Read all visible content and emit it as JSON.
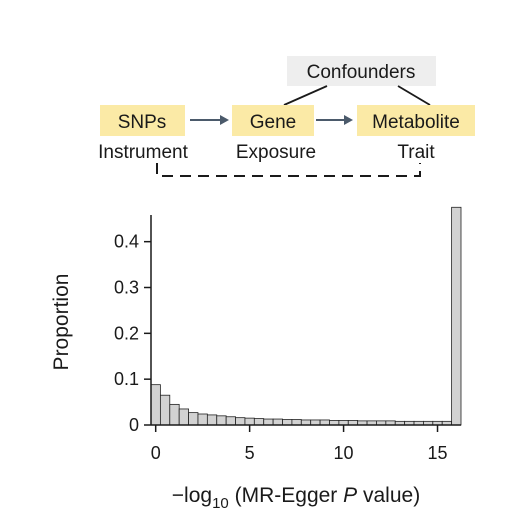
{
  "diagram": {
    "nodes": {
      "snps": {
        "label": "SNPs",
        "role": "Instrument"
      },
      "gene": {
        "label": "Gene",
        "role": "Exposure"
      },
      "metabolite": {
        "label": "Metabolite",
        "role": "Trait"
      },
      "confounders": {
        "label": "Confounders"
      }
    },
    "colors": {
      "node_fill": "#fbeaa6",
      "confounder_fill": "#eeeeee",
      "arrow": "#4b5a6b",
      "line": "#1a1a1a"
    }
  },
  "chart_data": {
    "type": "bar",
    "title": "",
    "xlabel": "",
    "xlabel_parts": {
      "prefix": "−log",
      "subscript": "10",
      "middle": " (MR-Egger ",
      "italic": "P",
      "suffix": " value)"
    },
    "ylabel": "Proportion",
    "bin_width": 0.5,
    "x_start": -0.25,
    "values": [
      0.088,
      0.065,
      0.045,
      0.035,
      0.027,
      0.024,
      0.022,
      0.02,
      0.018,
      0.016,
      0.015,
      0.014,
      0.013,
      0.013,
      0.012,
      0.012,
      0.011,
      0.011,
      0.011,
      0.01,
      0.01,
      0.01,
      0.009,
      0.009,
      0.009,
      0.009,
      0.008,
      0.008,
      0.008,
      0.008,
      0.008,
      0.008,
      0.475
    ],
    "xlim": [
      -0.25,
      16.25
    ],
    "ylim": [
      0,
      0.48
    ],
    "xticks": [
      0,
      5,
      10,
      15
    ],
    "xtick_labels": [
      "0",
      "5",
      "10",
      "15"
    ],
    "yticks": [
      0,
      0.1,
      0.2,
      0.3,
      0.4
    ],
    "ytick_labels": [
      "0",
      "0.1",
      "0.2",
      "0.3",
      "0.4"
    ],
    "grid": false,
    "legend": "none",
    "colors": {
      "bar_fill": "#d2d2d2",
      "bar_stroke": "#222222",
      "axis": "#1a1a1a"
    }
  }
}
